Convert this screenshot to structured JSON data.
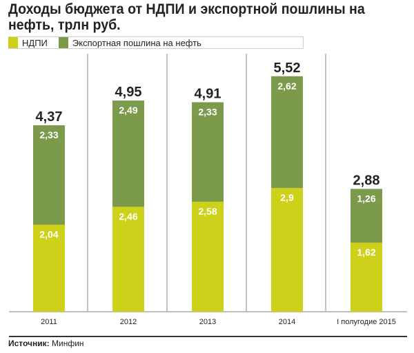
{
  "title": "Доходы бюджета от НДПИ и экспортной пошлины на нефть, трлн руб.",
  "source_label": "Источник:",
  "source_value": "Минфин",
  "colors": {
    "ndpi": "#cdd11a",
    "export": "#7b9a4c"
  },
  "chart_data": {
    "type": "bar",
    "stacked": true,
    "title": "Доходы бюджета от НДПИ и экспортной пошлины на нефть, трлн руб.",
    "categories": [
      "2011",
      "2012",
      "2013",
      "2014",
      "I полугодие 2015"
    ],
    "series": [
      {
        "name": "НДПИ",
        "values": [
          2.04,
          2.46,
          2.58,
          2.9,
          1.62
        ],
        "labels": [
          "2,04",
          "2,46",
          "2,58",
          "2,9",
          "1,62"
        ]
      },
      {
        "name": "Экспортная пошлина на нефть",
        "values": [
          2.33,
          2.49,
          2.33,
          2.62,
          1.26
        ],
        "labels": [
          "2,33",
          "2,49",
          "2,33",
          "2,62",
          "1,26"
        ]
      }
    ],
    "totals": [
      "4,37",
      "4,95",
      "4,91",
      "5,52",
      "2,88"
    ],
    "ylim": [
      0,
      6
    ],
    "legend": "top-left",
    "grid": false
  }
}
